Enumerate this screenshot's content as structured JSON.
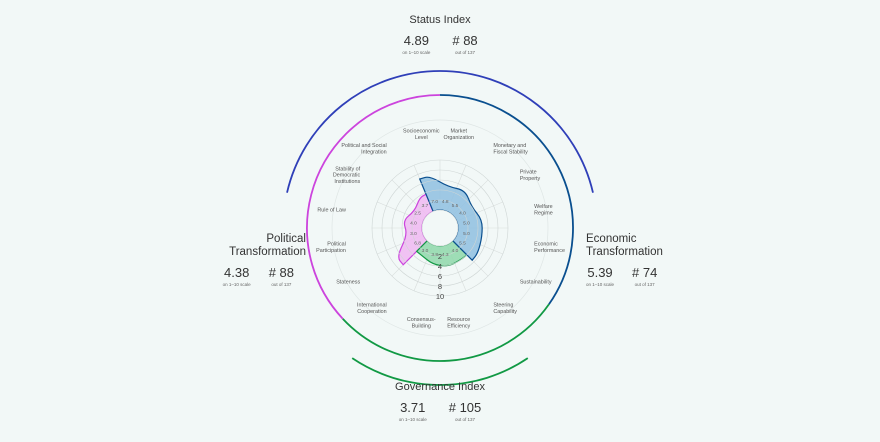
{
  "status": {
    "title": "Status Index",
    "score": "4.89",
    "score_sub": "on 1–10 scale",
    "rank": "# 88",
    "rank_sub": "out of 137"
  },
  "political": {
    "title_line1": "Political",
    "title_line2": "Transformation",
    "score": "4.38",
    "score_sub": "on 1–10 scale",
    "rank": "# 88",
    "rank_sub": "out of 137"
  },
  "economic": {
    "title_line1": "Economic",
    "title_line2": "Transformation",
    "score": "5.39",
    "score_sub": "on 1–10 scale",
    "rank": "# 74",
    "rank_sub": "out of 137"
  },
  "governance": {
    "title": "Governance Index",
    "score": "3.71",
    "score_sub": "on 1–10 scale",
    "rank": "# 105",
    "rank_sub": "out of 137"
  },
  "colors": {
    "political": "#cc44dd",
    "political_fill": "#f0b8f2",
    "economic": "#0a4f8f",
    "economic_fill": "#8fbfe0",
    "governance": "#119944",
    "governance_fill": "#8fd8aa",
    "status_arc": "#2f3fb8"
  },
  "chart_data": {
    "type": "radar",
    "scale_labels": [
      "2",
      "4",
      "6",
      "8",
      "10"
    ],
    "rlim": [
      0,
      10
    ],
    "criteria": [
      {
        "label": [
          "Market",
          "Organization"
        ],
        "value": 4.8,
        "display": "4.8",
        "group": "economic"
      },
      {
        "label": [
          "Monetary and",
          "Fiscal Stability"
        ],
        "value": 5.5,
        "display": "5.5",
        "group": "economic"
      },
      {
        "label": [
          "Private",
          "Property"
        ],
        "value": 4.0,
        "display": "4.0",
        "group": "economic"
      },
      {
        "label": [
          "Welfare",
          "Regime"
        ],
        "value": 5.0,
        "display": "5.0",
        "group": "economic"
      },
      {
        "label": [
          "Economic",
          "Performance"
        ],
        "value": 5.0,
        "display": "5.0",
        "group": "economic"
      },
      {
        "label": [
          "Sustainability"
        ],
        "value": 5.5,
        "display": "5.5",
        "group": "economic"
      },
      {
        "label": [
          "Steering",
          "Capability"
        ],
        "value": 4.0,
        "display": "4.0",
        "group": "governance"
      },
      {
        "label": [
          "Resource",
          "Efficiency"
        ],
        "value": 4.3,
        "display": "4.3",
        "group": "governance"
      },
      {
        "label": [
          "Consensus-",
          "Building"
        ],
        "value": 3.8,
        "display": "3.8",
        "group": "governance"
      },
      {
        "label": [
          "International",
          "Cooperation"
        ],
        "value": 3.0,
        "display": "3.0",
        "group": "governance"
      },
      {
        "label": [
          "Stateness"
        ],
        "value": 6.8,
        "display": "6.8",
        "group": "political"
      },
      {
        "label": [
          "Political",
          "Participation"
        ],
        "value": 3.0,
        "display": "3.0",
        "group": "political"
      },
      {
        "label": [
          "Rule of Law"
        ],
        "value": 4.0,
        "display": "4.0",
        "group": "political"
      },
      {
        "label": [
          "Stability of",
          "Democratic",
          "Institutions"
        ],
        "value": 2.5,
        "display": "2.5",
        "group": "political"
      },
      {
        "label": [
          "Political and Social",
          "Integration"
        ],
        "value": 3.7,
        "display": "3.7",
        "group": "political"
      },
      {
        "label": [
          "Socioeconomic",
          "Level"
        ],
        "value": 7.0,
        "display": "7.0",
        "group": "economic"
      }
    ]
  }
}
